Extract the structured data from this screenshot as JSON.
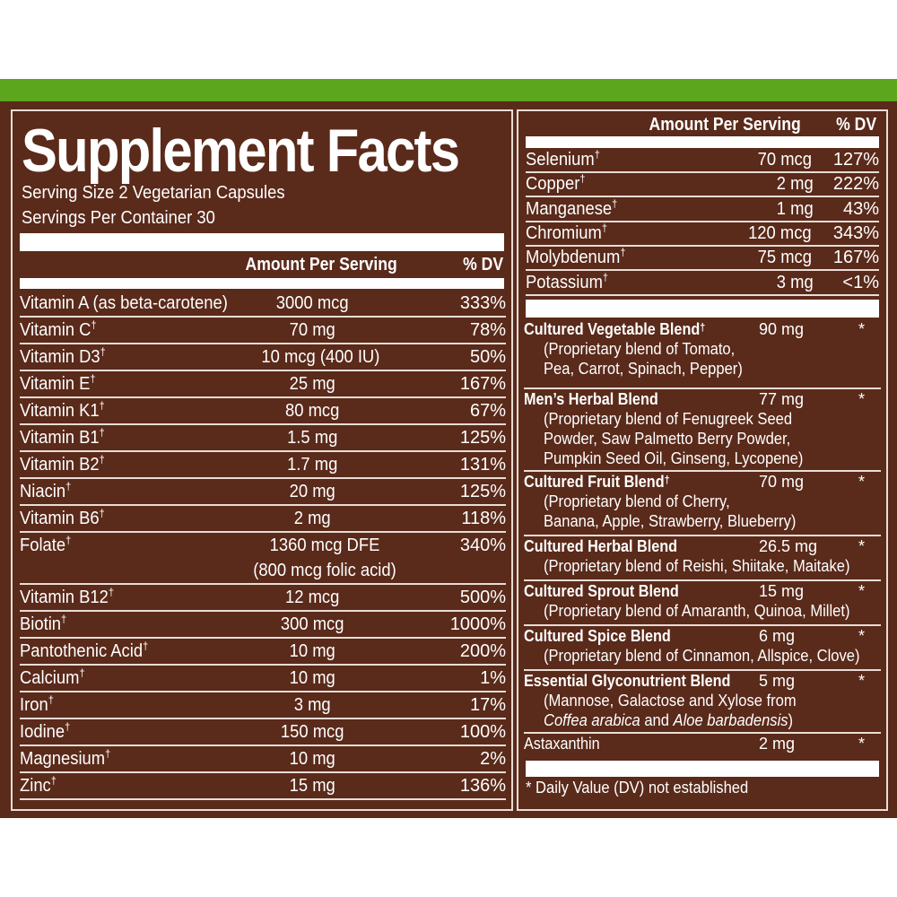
{
  "title": "Supplement Facts",
  "serving_size": "Serving Size 2 Vegetarian Capsules",
  "servings_per_container": "Servings Per Container 30",
  "header": {
    "amount": "Amount Per Serving",
    "dv": "% DV"
  },
  "dagger": "†",
  "colors": {
    "green": "#5ba61d",
    "brown": "#5a2a1a"
  },
  "left_rows": [
    {
      "name": "Vitamin A (as beta-carotene)",
      "dagger": false,
      "amount": "3000 mcg",
      "dv": "333%"
    },
    {
      "name": "Vitamin C",
      "dagger": true,
      "amount": "70 mg",
      "dv": "78%"
    },
    {
      "name": "Vitamin D3",
      "dagger": true,
      "amount": "10 mcg  (400 IU)",
      "dv": "50%"
    },
    {
      "name": "Vitamin E",
      "dagger": true,
      "amount": "25 mg",
      "dv": "167%"
    },
    {
      "name": "Vitamin K1",
      "dagger": true,
      "amount": "80 mcg",
      "dv": "67%"
    },
    {
      "name": "Vitamin B1",
      "dagger": true,
      "amount": "1.5 mg",
      "dv": "125%"
    },
    {
      "name": "Vitamin B2",
      "dagger": true,
      "amount": "1.7 mg",
      "dv": "131%"
    },
    {
      "name": "Niacin",
      "dagger": true,
      "amount": "20 mg",
      "dv": "125%"
    },
    {
      "name": "Vitamin B6",
      "dagger": true,
      "amount": "2 mg",
      "dv": "118%"
    },
    {
      "name": "Folate",
      "dagger": true,
      "amount": "1360 mcg DFE",
      "amount2": "(800 mcg folic acid)",
      "dv": "340%"
    },
    {
      "name": "Vitamin B12",
      "dagger": true,
      "amount": "12 mcg",
      "dv": "500%"
    },
    {
      "name": "Biotin",
      "dagger": true,
      "amount": "300 mcg",
      "dv": "1000%"
    },
    {
      "name": "Pantothenic Acid",
      "dagger": true,
      "amount": "10 mg",
      "dv": "200%"
    },
    {
      "name": "Calcium",
      "dagger": true,
      "amount": "10 mg",
      "dv": "1%"
    },
    {
      "name": "Iron",
      "dagger": true,
      "amount": "3 mg",
      "dv": "17%"
    },
    {
      "name": "Iodine",
      "dagger": true,
      "amount": "150 mcg",
      "dv": "100%"
    },
    {
      "name": "Magnesium",
      "dagger": true,
      "amount": "10 mg",
      "dv": "2%"
    },
    {
      "name": "Zinc",
      "dagger": true,
      "amount": "15 mg",
      "dv": "136%"
    }
  ],
  "right_rows": [
    {
      "name": "Selenium",
      "dagger": true,
      "amount": "70 mcg",
      "dv": "127%"
    },
    {
      "name": "Copper",
      "dagger": true,
      "amount": "2 mg",
      "dv": "222%"
    },
    {
      "name": "Manganese",
      "dagger": true,
      "amount": "1 mg",
      "dv": "43%"
    },
    {
      "name": "Chromium",
      "dagger": true,
      "amount": "120 mcg",
      "dv": "343%"
    },
    {
      "name": "Molybdenum",
      "dagger": true,
      "amount": "75 mcg",
      "dv": "167%"
    },
    {
      "name": "Potassium",
      "dagger": true,
      "amount": "3 mg",
      "dv": "<1%"
    }
  ],
  "blends": [
    {
      "name": "Cultured Vegetable Blend",
      "dagger": true,
      "amount": "90 mg",
      "dv": "*",
      "lines": [
        [
          {
            "t": "(Proprietary blend of Tomato,"
          }
        ],
        [
          {
            "t": "Pea, Carrot, Spinach, Pepper)"
          }
        ]
      ]
    },
    {
      "name": "Men’s Herbal Blend",
      "dagger": false,
      "amount": "77 mg",
      "dv": "*",
      "lines": [
        [
          {
            "t": "(Proprietary blend of Fenugreek Seed"
          }
        ],
        [
          {
            "t": "Powder, Saw Palmetto Berry Powder,"
          }
        ],
        [
          {
            "t": "Pumpkin Seed Oil, Ginseng, Lycopene)"
          }
        ]
      ]
    },
    {
      "name": "Cultured Fruit Blend",
      "dagger": true,
      "amount": "70 mg",
      "dv": "*",
      "lines": [
        [
          {
            "t": "(Proprietary blend of Cherry,"
          }
        ],
        [
          {
            "t": "Banana, Apple, Strawberry, Blueberry)"
          }
        ]
      ]
    },
    {
      "name": "Cultured Herbal Blend",
      "dagger": false,
      "amount": "26.5 mg",
      "dv": "*",
      "lines": [
        [
          {
            "t": "(Proprietary blend of Reishi, Shiitake, Maitake)"
          }
        ]
      ]
    },
    {
      "name": "Cultured Sprout Blend",
      "dagger": false,
      "amount": "15 mg",
      "dv": "*",
      "lines": [
        [
          {
            "t": "(Proprietary blend of Amaranth, Quinoa, Millet)"
          }
        ]
      ]
    },
    {
      "name": "Cultured Spice Blend",
      "dagger": false,
      "amount": "6 mg",
      "dv": "*",
      "lines": [
        [
          {
            "t": "(Proprietary blend of Cinnamon, Allspice, Clove)"
          }
        ]
      ]
    },
    {
      "name": "Essential Glyconutrient Blend",
      "dagger": false,
      "amount": "5 mg",
      "dv": "*",
      "lines": [
        [
          {
            "t": "(Mannose, Galactose and Xylose from"
          }
        ],
        [
          {
            "t": "Coffea arabica",
            "i": true
          },
          {
            "t": " and "
          },
          {
            "t": "Aloe barbadensis",
            "i": true
          },
          {
            "t": ")"
          }
        ]
      ]
    },
    {
      "name": "Astaxanthin",
      "dagger": false,
      "plain": true,
      "amount": "2 mg",
      "dv": "*",
      "lines": []
    }
  ],
  "footnote": "* Daily Value (DV) not established"
}
